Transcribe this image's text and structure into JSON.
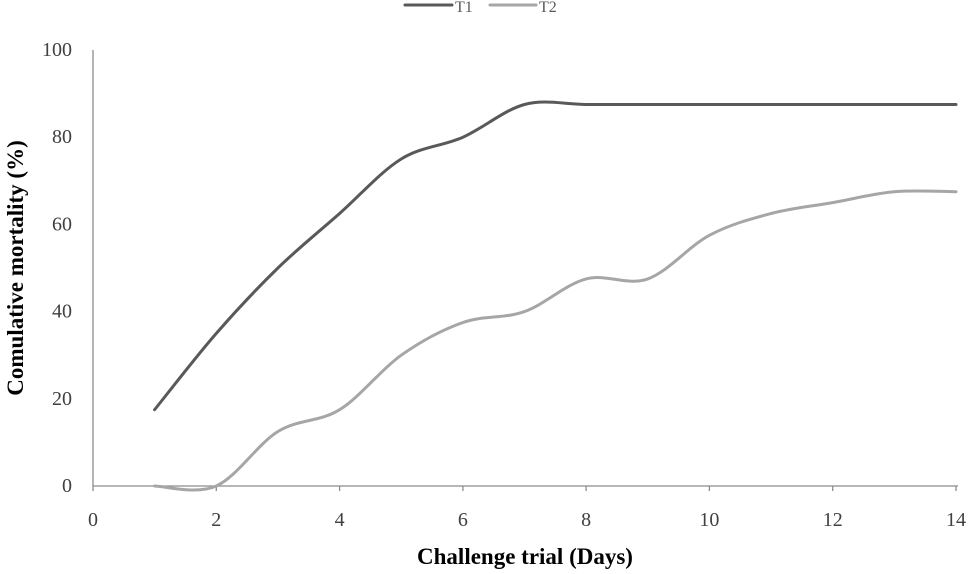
{
  "chart_data": {
    "type": "line",
    "xlabel": "Challenge trial (Days)",
    "ylabel": "Comulative mortality (%)",
    "xlim": [
      0,
      14
    ],
    "ylim": [
      0,
      100
    ],
    "x_ticks": [
      0,
      2,
      4,
      6,
      8,
      10,
      12,
      14
    ],
    "y_ticks": [
      0,
      20,
      40,
      60,
      80,
      100
    ],
    "grid": false,
    "legend_position": "top",
    "smoothed": true,
    "series": [
      {
        "name": "T1",
        "color": "#595959",
        "x": [
          1,
          2,
          3,
          4,
          5,
          6,
          7,
          8,
          9,
          10,
          11,
          12,
          13,
          14
        ],
        "y": [
          17.5,
          35,
          50,
          62.5,
          75,
          80,
          87.5,
          87.5,
          87.5,
          87.5,
          87.5,
          87.5,
          87.5,
          87.5
        ]
      },
      {
        "name": "T2",
        "color": "#a6a6a6",
        "x": [
          1,
          2,
          3,
          4,
          5,
          6,
          7,
          8,
          9,
          10,
          11,
          12,
          13,
          14
        ],
        "y": [
          0,
          0,
          12.5,
          17.5,
          30,
          37.5,
          40,
          47.5,
          47.5,
          57.5,
          62.5,
          65,
          67.5,
          67.5
        ]
      }
    ]
  }
}
